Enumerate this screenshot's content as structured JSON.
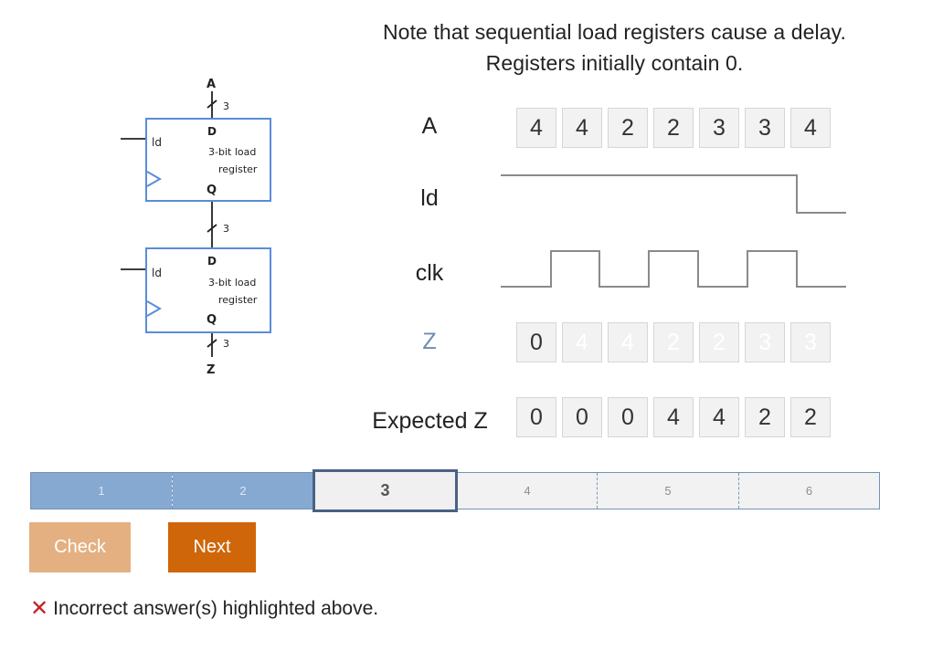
{
  "instructions": {
    "line1": "Note that sequential load registers cause a delay.",
    "line2": "Registers initially contain 0."
  },
  "diagram": {
    "top_input": "A",
    "bottom_output": "Z",
    "bus_width": "3",
    "register_top": {
      "ld": "ld",
      "d": "D",
      "q": "Q",
      "name_line1": "3-bit load",
      "name_line2": "register"
    },
    "register_bottom": {
      "ld": "ld",
      "d": "D",
      "q": "Q",
      "name_line1": "3-bit load",
      "name_line2": "register"
    }
  },
  "timing": {
    "label_a": "A",
    "label_ld": "ld",
    "label_clk": "clk",
    "label_z": "Z",
    "label_expected": "Expected Z",
    "a_values": [
      "4",
      "4",
      "2",
      "2",
      "3",
      "3",
      "4"
    ],
    "z_values": [
      "0",
      "4",
      "4",
      "2",
      "2",
      "3",
      "3"
    ],
    "expected_values": [
      "0",
      "0",
      "0",
      "4",
      "4",
      "2",
      "2"
    ]
  },
  "progress": {
    "segments": [
      "1",
      "2",
      "3",
      "4",
      "5",
      "6"
    ],
    "current": "3"
  },
  "buttons": {
    "check": "Check",
    "next": "Next"
  },
  "feedback": {
    "icon": "✕",
    "text": "Incorrect answer(s) highlighted above."
  },
  "colors": {
    "register_border": "#5b8cd8",
    "check_button": "#e4b082",
    "next_button": "#cf6609",
    "z_label": "#6f8ab4",
    "progress_done": "#86a9d2",
    "error_icon": "#c42121"
  }
}
